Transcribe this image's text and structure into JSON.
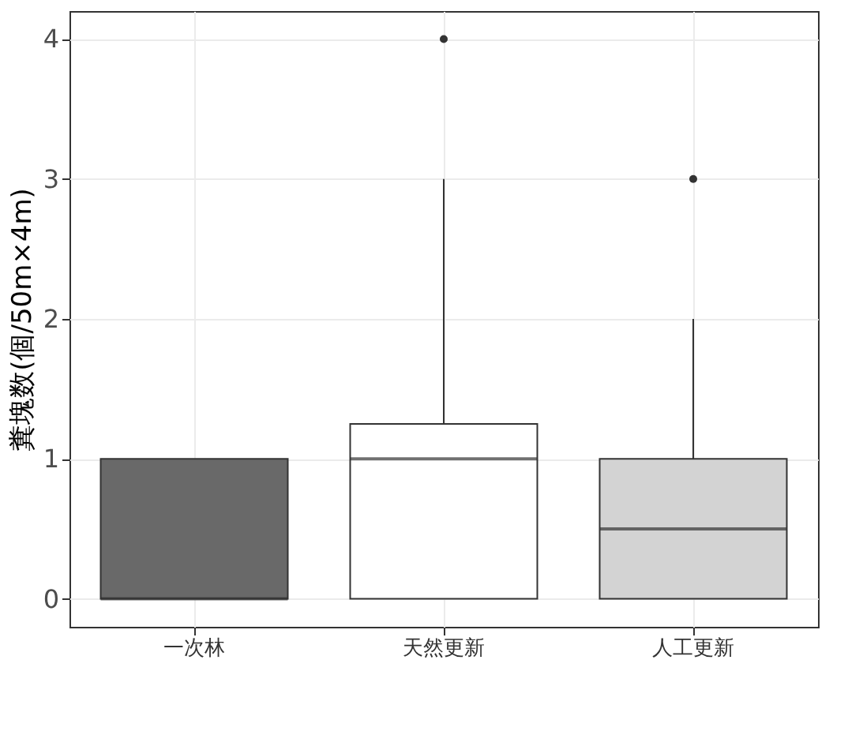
{
  "chart_data": {
    "type": "box",
    "ylabel": "糞塊数(個/50m×4m)",
    "categories": [
      "一次林",
      "天然更新",
      "人工更新"
    ],
    "colors": [
      "#696969",
      "#ffffff",
      "#d3d3d3"
    ],
    "boxes": [
      {
        "low": 0,
        "q1": 0,
        "median": 0,
        "q3": 1,
        "high": 1
      },
      {
        "low": 0,
        "q1": 0,
        "median": 1,
        "q3": 1.25,
        "high": 3,
        "outliers": [
          4
        ]
      },
      {
        "low": 0,
        "q1": 0,
        "median": 0.5,
        "q3": 1,
        "high": 2,
        "outliers": [
          3
        ]
      }
    ],
    "ylim": [
      -0.2,
      4.2
    ],
    "yticks": [
      0,
      1,
      2,
      3,
      4
    ],
    "grid": true,
    "legend": false
  }
}
